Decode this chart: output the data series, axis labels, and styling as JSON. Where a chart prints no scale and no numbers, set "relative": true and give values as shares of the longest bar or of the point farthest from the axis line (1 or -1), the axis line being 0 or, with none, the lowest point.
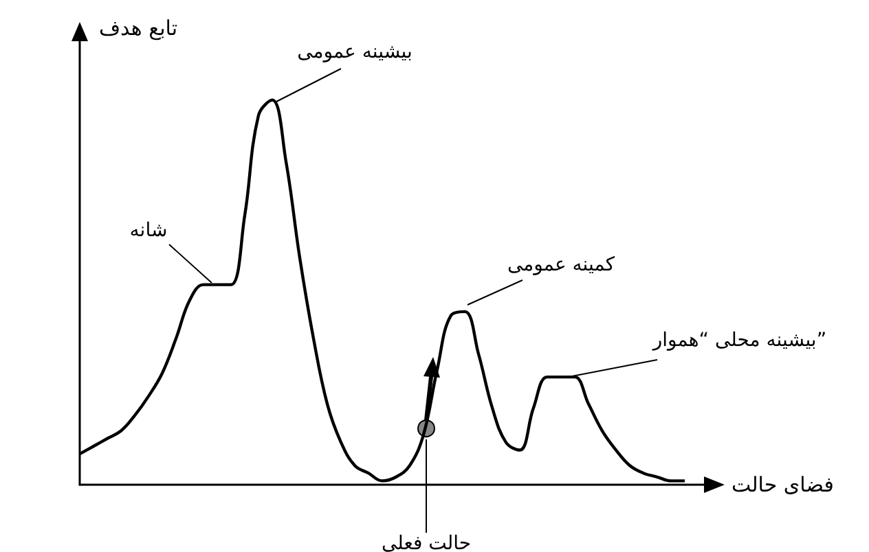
{
  "chart_data": {
    "type": "line",
    "relative": true,
    "xlabel": "فضای حالت",
    "ylabel": "تابع هدف",
    "color": "#000000",
    "marker": "none",
    "categories": [
      null,
      null,
      null,
      null,
      null,
      null,
      null,
      null,
      null,
      null,
      null,
      null,
      null,
      null,
      null,
      null,
      null,
      null,
      null,
      null,
      null,
      null,
      null,
      null,
      null,
      null,
      null,
      null,
      null,
      null,
      null,
      null,
      null,
      null,
      null,
      null,
      null,
      null,
      null,
      null,
      null,
      null,
      null,
      null,
      null
    ],
    "values": [
      0.08,
      0.1,
      0.12,
      0.14,
      0.18,
      0.23,
      0.29,
      0.38,
      0.48,
      0.52,
      0.52,
      0.52,
      0.7,
      0.96,
      1,
      0.84,
      0.59,
      0.38,
      0.21,
      0.11,
      0.05,
      0.03,
      0.01,
      0.02,
      0.05,
      0.13,
      0.3,
      0.44,
      0.45,
      0.34,
      0.2,
      0.11,
      0.09,
      0.2,
      0.28,
      0.28,
      0.28,
      0.21,
      0.14,
      0.09,
      0.05,
      0.03,
      0.02,
      0.01,
      0.01
    ],
    "annotations": [
      "بیشینه عمومی",
      "شانه",
      "کمینه عمومی",
      "بیشینه محلی “هموار”",
      "حالت فعلی"
    ]
  }
}
